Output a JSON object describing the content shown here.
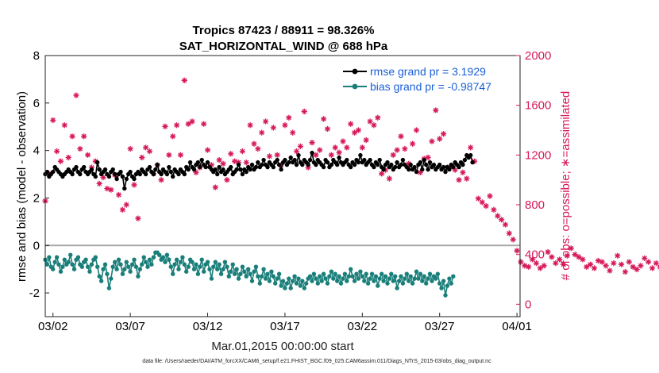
{
  "chart_data": {
    "type": "line",
    "title_line1": "Tropics 87423 / 88911 = 98.326%",
    "title_line2": "SAT_HORIZONTAL_WIND @ 688 hPa",
    "xlabel": "Mar.01,2015 00:00:00 start",
    "ylabel_left": "rmse and bias (model - observation)",
    "ylabel_right": "# of obs: o=possible; ∗=assimilated",
    "footer": "data file: /Users/raeder/DAI/ATM_forcXX/CAM6_setup/f.e21.FHIST_BGC.f09_025.CAM6assim.011/Diags_NTrS_2015-03/obs_diag_output.nc",
    "xlim": [
      1.5,
      32.2
    ],
    "ylim_left": [
      -3,
      8
    ],
    "ylim_right": [
      -100,
      2000
    ],
    "y_ticks_left": [
      -2,
      0,
      2,
      4,
      6,
      8
    ],
    "y_ticks_right": [
      0,
      400,
      800,
      1200,
      1600,
      2000
    ],
    "x_ticks": [
      {
        "value": 2,
        "label": "03/02"
      },
      {
        "value": 7,
        "label": "03/07"
      },
      {
        "value": 12,
        "label": "03/12"
      },
      {
        "value": 17,
        "label": "03/17"
      },
      {
        "value": 22,
        "label": "03/22"
      },
      {
        "value": 27,
        "label": "03/27"
      },
      {
        "value": 32,
        "label": "04/01"
      }
    ],
    "legend": {
      "position": "top-right",
      "entries": [
        "rmse grand pr = 3.1929",
        "bias grand pr = -0.98747"
      ]
    },
    "colors": {
      "rmse": "#000000",
      "bias": "#1a7f7a",
      "obs": "#d6185a",
      "zero_line": "#aaaaaa",
      "legend_text": "#1a5fd6"
    },
    "series": [
      {
        "name": "rmse",
        "axis": "left",
        "start": 1.5,
        "step": 0.125,
        "values": [
          3.0,
          3.1,
          2.9,
          3.0,
          3.1,
          3.3,
          3.2,
          3.1,
          3.0,
          2.9,
          3.0,
          3.1,
          3.2,
          3.1,
          3.0,
          3.2,
          3.3,
          3.1,
          3.0,
          3.2,
          3.3,
          3.1,
          3.0,
          3.1,
          3.2,
          3.0,
          2.9,
          3.5,
          3.2,
          3.0,
          3.1,
          3.2,
          3.0,
          2.9,
          3.1,
          3.2,
          3.0,
          2.8,
          3.0,
          3.1,
          2.9,
          2.4,
          2.8,
          3.0,
          3.1,
          2.9,
          2.8,
          3.0,
          3.1,
          3.0,
          3.2,
          3.1,
          3.0,
          3.2,
          3.3,
          3.1,
          3.0,
          3.2,
          3.4,
          3.1,
          3.0,
          3.2,
          3.1,
          3.0,
          3.3,
          3.1,
          2.9,
          3.2,
          3.1,
          3.0,
          3.2,
          3.1,
          3.0,
          3.3,
          3.2,
          3.5,
          3.3,
          3.2,
          3.4,
          3.5,
          3.3,
          3.6,
          3.4,
          3.3,
          3.5,
          3.3,
          3.2,
          3.1,
          3.2,
          3.0,
          3.3,
          3.1,
          3.2,
          3.0,
          3.1,
          3.2,
          3.3,
          3.0,
          3.1,
          3.2,
          3.4,
          3.2,
          3.0,
          3.2,
          3.1,
          3.3,
          3.2,
          3.4,
          3.2,
          3.3,
          3.5,
          3.3,
          3.4,
          3.6,
          3.4,
          3.3,
          3.5,
          3.4,
          3.3,
          3.5,
          3.6,
          3.4,
          3.2,
          3.5,
          3.6,
          3.4,
          3.5,
          3.7,
          3.5,
          3.6,
          3.4,
          3.8,
          3.5,
          3.4,
          3.6,
          3.5,
          3.4,
          3.6,
          3.9,
          3.5,
          3.4,
          3.6,
          3.5,
          3.4,
          3.3,
          3.6,
          3.5,
          3.3,
          3.4,
          3.6,
          3.5,
          3.4,
          3.7,
          3.5,
          3.4,
          3.5,
          3.6,
          3.4,
          3.3,
          3.5,
          3.4,
          3.6,
          3.5,
          3.8,
          3.5,
          3.6,
          3.4,
          3.5,
          3.6,
          3.4,
          3.3,
          3.5,
          3.4,
          3.6,
          3.3,
          3.2,
          3.4,
          3.5,
          3.3,
          3.4,
          3.2,
          3.3,
          3.5,
          3.3,
          3.4,
          3.6,
          3.4,
          3.3,
          3.2,
          3.4,
          3.2,
          3.3,
          3.1,
          3.4,
          3.5,
          3.2,
          3.6,
          3.4,
          3.2,
          3.5,
          3.3,
          3.4,
          3.2,
          3.3,
          3.4,
          3.2,
          3.3,
          3.1,
          3.3,
          3.2,
          3.4,
          3.3,
          3.5,
          3.4,
          3.3,
          3.5,
          3.4,
          3.6,
          3.8,
          3.7,
          3.8,
          3.5
        ]
      },
      {
        "name": "bias",
        "axis": "left",
        "start": 1.5,
        "step": 0.125,
        "values": [
          -0.6,
          -0.8,
          -0.5,
          -0.9,
          -1.0,
          -0.7,
          -0.5,
          -0.8,
          -1.1,
          -0.9,
          -0.6,
          -0.8,
          -0.7,
          -0.4,
          -0.8,
          -1.0,
          -0.6,
          -0.5,
          -0.8,
          -0.9,
          -0.7,
          -0.6,
          -0.9,
          -1.1,
          -0.8,
          -0.6,
          -0.5,
          -0.9,
          -1.3,
          -1.5,
          -1.0,
          -0.8,
          -1.2,
          -1.8,
          -1.4,
          -0.9,
          -0.7,
          -1.0,
          -0.6,
          -0.8,
          -1.2,
          -1.0,
          -0.7,
          -0.9,
          -1.1,
          -0.8,
          -0.6,
          -0.9,
          -1.3,
          -1.0,
          -0.8,
          -0.5,
          -0.7,
          -0.9,
          -0.6,
          -0.8,
          -0.5,
          -0.3,
          -0.3,
          -0.4,
          -0.6,
          -0.5,
          -0.7,
          -0.4,
          -0.6,
          -0.9,
          -1.2,
          -0.8,
          -0.6,
          -1.0,
          -0.7,
          -0.5,
          -0.8,
          -1.1,
          -0.9,
          -0.6,
          -0.7,
          -1.0,
          -0.8,
          -1.2,
          -0.9,
          -0.6,
          -1.1,
          -0.8,
          -0.7,
          -1.0,
          -1.4,
          -0.9,
          -0.7,
          -1.0,
          -0.8,
          -1.2,
          -1.0,
          -0.7,
          -0.9,
          -1.3,
          -1.1,
          -0.8,
          -1.2,
          -1.0,
          -1.4,
          -1.2,
          -0.9,
          -1.1,
          -1.3,
          -1.0,
          -1.2,
          -1.5,
          -1.1,
          -0.9,
          -1.3,
          -1.6,
          -1.3,
          -1.0,
          -1.4,
          -1.2,
          -1.5,
          -1.1,
          -1.3,
          -1.6,
          -1.4,
          -1.2,
          -1.7,
          -1.5,
          -1.8,
          -1.6,
          -1.4,
          -1.8,
          -1.5,
          -1.3,
          -1.6,
          -1.4,
          -1.7,
          -1.5,
          -1.8,
          -1.6,
          -1.4,
          -1.3,
          -1.5,
          -1.2,
          -1.4,
          -1.6,
          -1.3,
          -1.5,
          -1.2,
          -1.4,
          -1.6,
          -1.3,
          -1.1,
          -1.4,
          -1.2,
          -1.5,
          -1.3,
          -1.6,
          -1.4,
          -1.2,
          -1.5,
          -1.3,
          -1.0,
          -1.3,
          -1.5,
          -1.2,
          -1.4,
          -1.1,
          -1.3,
          -1.5,
          -1.2,
          -1.6,
          -1.4,
          -1.2,
          -1.5,
          -1.3,
          -1.7,
          -1.4,
          -1.2,
          -1.5,
          -1.3,
          -1.6,
          -1.4,
          -1.2,
          -1.5,
          -1.3,
          -1.8,
          -1.5,
          -1.3,
          -1.6,
          -1.4,
          -1.2,
          -1.5,
          -1.3,
          -1.6,
          -1.4,
          -1.1,
          -1.4,
          -1.2,
          -1.5,
          -1.3,
          -1.6,
          -1.4,
          -1.2,
          -1.5,
          -1.3,
          -1.4,
          -1.2,
          -1.6,
          -1.8,
          -1.5,
          -2.1,
          -1.7,
          -1.4,
          -1.6,
          -1.3
        ]
      },
      {
        "name": "obs_assimilated",
        "axis": "right",
        "start": 1.5,
        "step": 0.25,
        "values": [
          830,
          1050,
          1480,
          1230,
          1150,
          1440,
          1180,
          1350,
          1680,
          1250,
          1350,
          1200,
          1100,
          1150,
          970,
          1020,
          930,
          920,
          1040,
          880,
          760,
          800,
          1250,
          960,
          690,
          1180,
          1260,
          1230,
          1050,
          1120,
          1000,
          1430,
          1200,
          1350,
          1440,
          1200,
          1800,
          1450,
          1470,
          1060,
          1100,
          1450,
          1240,
          1120,
          940,
          1160,
          1130,
          1000,
          1210,
          1150,
          1140,
          1230,
          1140,
          1440,
          1290,
          1250,
          1380,
          1470,
          1190,
          1420,
          1200,
          1120,
          1440,
          1500,
          1380,
          1230,
          1270,
          1550,
          1100,
          1300,
          1200,
          1240,
          1490,
          1410,
          1200,
          1260,
          1220,
          1310,
          1260,
          1450,
          1380,
          1400,
          1260,
          1320,
          1470,
          1440,
          1500,
          1050,
          1080,
          1010,
          1200,
          1240,
          1350,
          1250,
          1130,
          1290,
          1400,
          1060,
          1170,
          1180,
          1310,
          1560,
          1330,
          1370,
          1100,
          1110,
          1080,
          1000,
          1060,
          1010,
          1260,
          1150,
          850,
          820,
          790,
          870,
          760,
          710,
          680,
          640,
          570,
          520,
          430,
          340,
          310,
          300,
          360,
          330,
          290,
          310,
          420,
          380,
          330,
          360,
          320,
          390,
          450,
          400,
          380,
          360,
          300,
          320,
          290,
          350,
          340,
          310,
          270,
          330,
          390,
          320,
          260,
          340,
          300,
          280,
          310,
          370,
          340,
          290,
          330,
          300,
          260,
          320,
          290,
          350,
          380,
          300,
          270,
          330,
          280,
          300,
          270,
          310,
          290,
          250,
          300,
          320,
          260,
          280,
          330,
          290,
          260,
          270,
          250,
          300,
          330,
          280,
          250,
          270,
          310,
          290,
          340,
          270,
          350,
          270,
          250,
          240,
          230,
          290,
          200,
          180,
          250,
          220,
          190,
          230,
          270,
          300,
          330,
          350,
          360,
          340,
          370,
          410,
          380,
          370,
          420,
          360,
          300,
          340,
          380,
          320,
          360,
          330,
          400,
          380,
          360,
          390,
          350,
          400,
          380,
          410,
          370,
          400,
          350,
          390,
          330,
          380,
          420,
          440,
          410,
          400,
          380,
          420,
          590,
          430,
          460,
          -5
        ]
      }
    ]
  }
}
